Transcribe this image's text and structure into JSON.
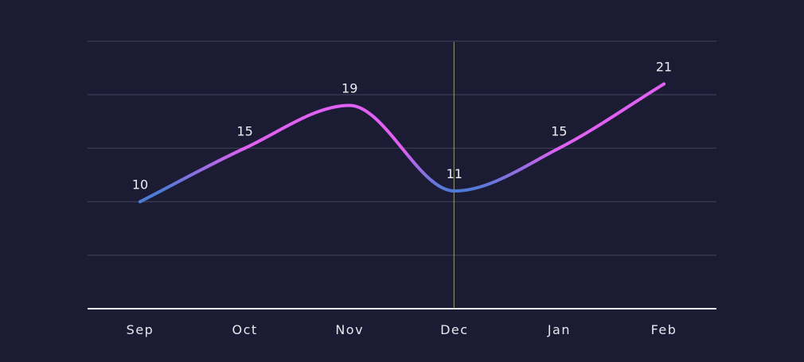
{
  "colors": {
    "background": "#1b1c34",
    "gridline": "#3a3b55",
    "axis": "#e8e8ee",
    "crosshair": "#b3b37a",
    "line_low": "#4d7bd6",
    "line_high": "#e060f2",
    "drop_line": "#ffffff",
    "text": "#e6e6ee"
  },
  "chart_data": {
    "type": "line",
    "curve": "smooth",
    "categories": [
      "Sep",
      "Oct",
      "Nov",
      "Dec",
      "Jan",
      "Feb"
    ],
    "values": [
      10,
      15,
      19,
      11,
      15,
      21
    ],
    "data_labels": [
      "10",
      "15",
      "19",
      "11",
      "15",
      "21"
    ],
    "ylim": [
      0,
      25
    ],
    "grid": true,
    "legend": "none",
    "highlight_category": "Dec",
    "color_gradient": "blue at low values, magenta at high values"
  }
}
